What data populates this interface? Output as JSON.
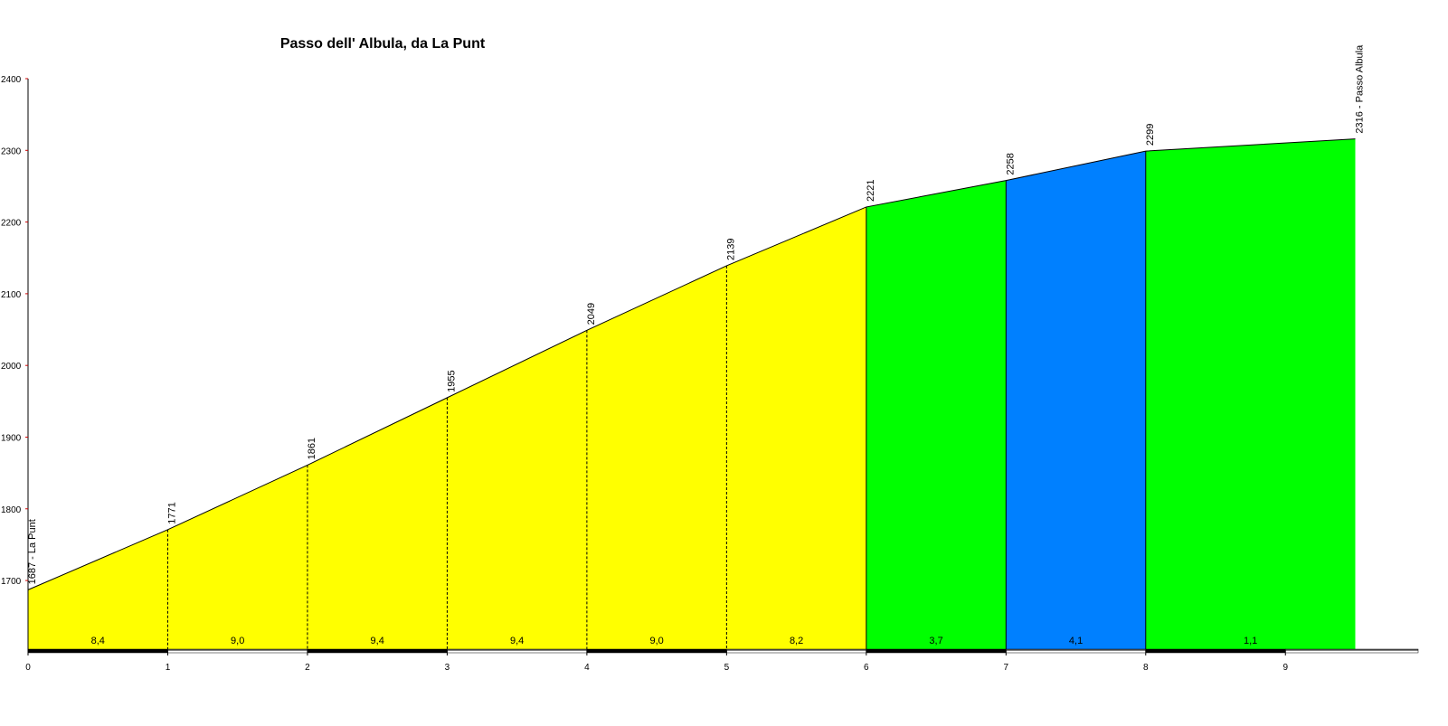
{
  "chart_data": {
    "type": "profile",
    "title": "Passo dell' Albula, da La Punt",
    "x": [
      0,
      1,
      2,
      3,
      4,
      5,
      6,
      7,
      8,
      9.5
    ],
    "values": [
      1687,
      1771,
      1861,
      1955,
      2049,
      2139,
      2221,
      2258,
      2299,
      2316
    ],
    "value_labels": [
      "1687 - La Punt",
      "1771",
      "1861",
      "1955",
      "2049",
      "2139",
      "2221",
      "2258",
      "2299",
      "2316 - Passo Albula"
    ],
    "gradients": [
      8.4,
      9.0,
      9.4,
      9.4,
      9.0,
      8.2,
      3.7,
      4.1,
      1.1
    ],
    "gradient_labels": [
      "8,4",
      "9,0",
      "9,4",
      "9,4",
      "9,0",
      "8,2",
      "3,7",
      "4,1",
      "1,1"
    ],
    "segment_colors": [
      "#ffff00",
      "#ffff00",
      "#ffff00",
      "#ffff00",
      "#ffff00",
      "#ffff00",
      "#00ff00",
      "#0080ff",
      "#00ff00"
    ],
    "xlim": [
      0,
      9.95
    ],
    "xticks": [
      0,
      1,
      2,
      3,
      4,
      5,
      6,
      7,
      8,
      9
    ],
    "ylim": [
      1603,
      2400
    ],
    "yticks": [
      1700,
      1800,
      1900,
      2000,
      2100,
      2200,
      2300,
      2400
    ]
  }
}
